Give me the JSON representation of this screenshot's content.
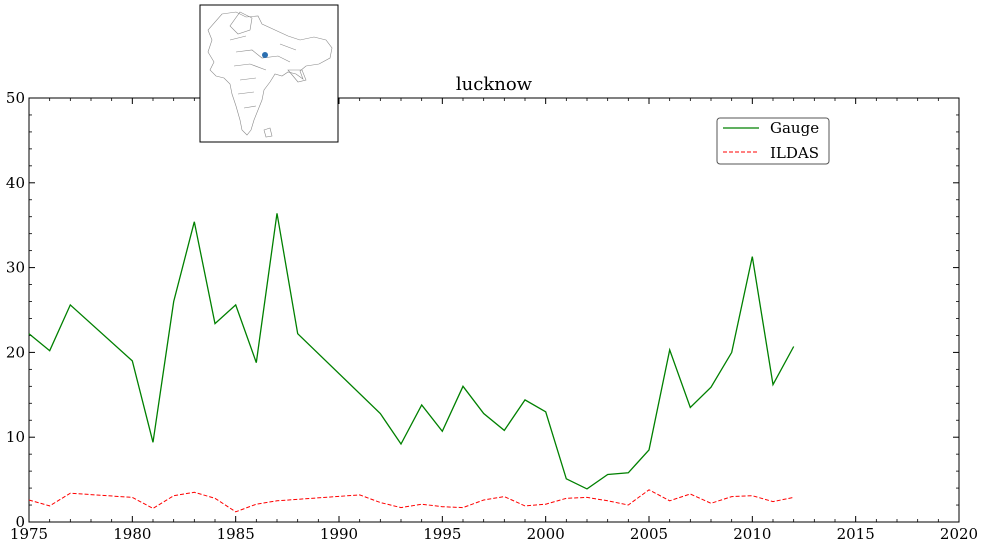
{
  "chart_data": {
    "type": "line",
    "title": "lucknow",
    "xlabel": "",
    "ylabel": "",
    "xlim": [
      1975,
      2020
    ],
    "ylim": [
      0,
      50
    ],
    "x_ticks": [
      1975,
      1980,
      1985,
      1990,
      1995,
      2000,
      2005,
      2010,
      2015,
      2020
    ],
    "y_ticks": [
      0,
      10,
      20,
      30,
      40,
      50
    ],
    "grid": false,
    "legend_position": "top-right",
    "series": [
      {
        "name": "Gauge",
        "color": "#008000",
        "style": "solid",
        "x": [
          1975,
          1976,
          1977,
          1980,
          1981,
          1982,
          1983,
          1984,
          1985,
          1986,
          1987,
          1988,
          1992,
          1993,
          1994,
          1995,
          1996,
          1997,
          1998,
          1999,
          2000,
          2001,
          2002,
          2003,
          2004,
          2005,
          2006,
          2007,
          2008,
          2009,
          2010,
          2011,
          2012
        ],
        "y": [
          22.2,
          20.2,
          25.6,
          19.0,
          9.4,
          26.0,
          35.4,
          23.4,
          25.6,
          18.8,
          36.4,
          22.2,
          12.8,
          9.2,
          13.8,
          10.7,
          16.0,
          12.8,
          10.8,
          14.4,
          13.0,
          5.1,
          3.9,
          5.6,
          5.8,
          8.5,
          20.3,
          13.5,
          15.9,
          20.0,
          31.3,
          16.2,
          20.7
        ]
      },
      {
        "name": "ILDAS",
        "color": "#ff0000",
        "style": "dashed",
        "x": [
          1975,
          1976,
          1977,
          1980,
          1981,
          1982,
          1983,
          1984,
          1985,
          1986,
          1987,
          1991,
          1992,
          1993,
          1994,
          1995,
          1996,
          1997,
          1998,
          1999,
          2000,
          2001,
          2002,
          2003,
          2004,
          2005,
          2006,
          2007,
          2008,
          2009,
          2010,
          2011,
          2012
        ],
        "y": [
          2.6,
          1.9,
          3.4,
          2.9,
          1.6,
          3.1,
          3.5,
          2.8,
          1.2,
          2.1,
          2.5,
          3.2,
          2.3,
          1.7,
          2.1,
          1.8,
          1.7,
          2.6,
          3.0,
          1.9,
          2.1,
          2.8,
          2.9,
          2.5,
          2.0,
          3.8,
          2.5,
          3.3,
          2.2,
          3.0,
          3.1,
          2.4,
          2.9
        ]
      }
    ]
  },
  "inset_map": {
    "marker_color": "#2c6fb0",
    "icon": "india-map-icon"
  }
}
